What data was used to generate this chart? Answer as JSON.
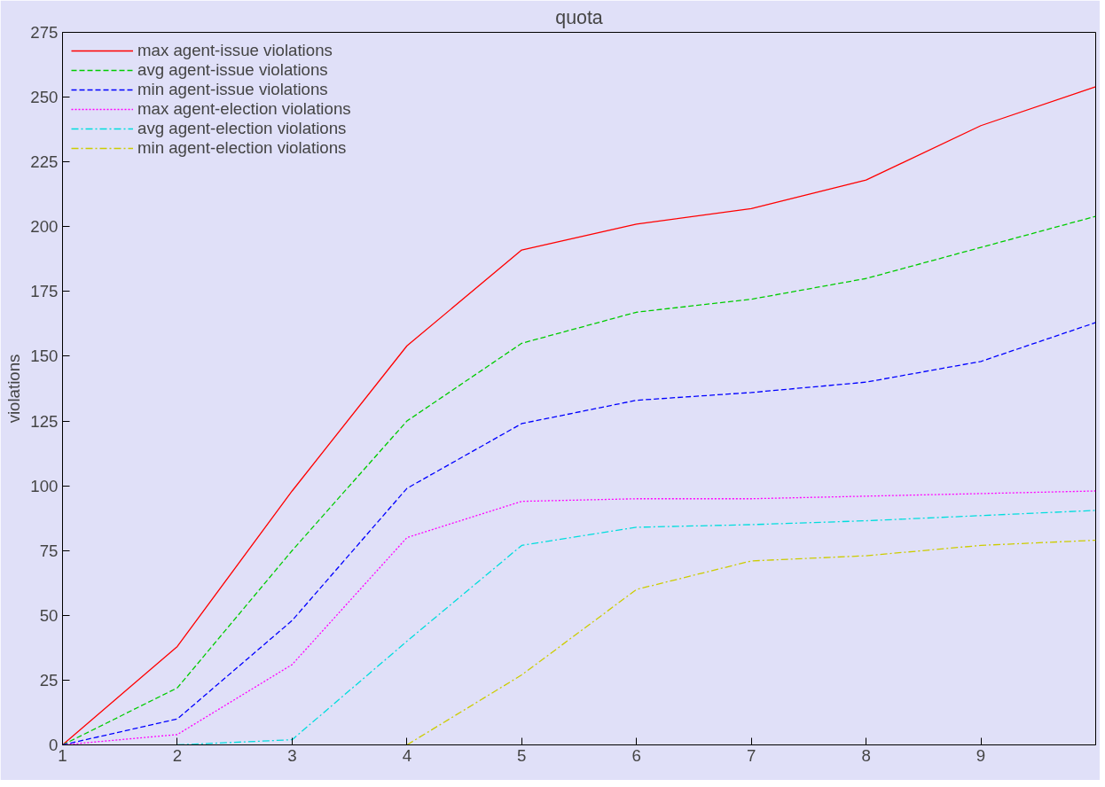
{
  "chart_data": {
    "type": "line",
    "title": "quota",
    "ylabel": "violations",
    "x": [
      1,
      2,
      3,
      4,
      5,
      6,
      7,
      8,
      9,
      10
    ],
    "xlim": [
      1,
      10
    ],
    "xticks": [
      1,
      2,
      3,
      4,
      5,
      6,
      7,
      8,
      9
    ],
    "ylim": [
      0,
      275
    ],
    "yticks": [
      0,
      25,
      50,
      75,
      100,
      125,
      150,
      175,
      200,
      225,
      250,
      275
    ],
    "grid": false,
    "legend": "top left",
    "marker": "none",
    "series": [
      {
        "name": "max agent-issue violations",
        "color": "#ff0000",
        "line_style": "solid",
        "values": [
          0,
          38,
          98,
          154,
          191,
          201,
          207,
          218,
          239,
          254
        ]
      },
      {
        "name": "avg agent-issue violations",
        "color": "#00cc00",
        "line_style": "dashed",
        "values": [
          0,
          22,
          75,
          125,
          155,
          167,
          172,
          180,
          192,
          204
        ]
      },
      {
        "name": "min agent-issue violations",
        "color": "#0000ff",
        "line_style": "dashed",
        "values": [
          0,
          10,
          48,
          99,
          124,
          133,
          136,
          140,
          148,
          163
        ]
      },
      {
        "name": "max agent-election violations",
        "color": "#ff00ff",
        "line_style": "dotted",
        "values": [
          0,
          4,
          31,
          80,
          94,
          95,
          95,
          96,
          97,
          98
        ]
      },
      {
        "name": "avg agent-election violations",
        "color": "#00dddd",
        "line_style": "dashdot",
        "values": [
          null,
          0,
          2,
          40,
          77,
          84,
          85,
          86.5,
          88.5,
          90.5
        ]
      },
      {
        "name": "min agent-election violations",
        "color": "#cccc00",
        "line_style": "dashdot",
        "values": [
          null,
          null,
          null,
          0,
          27,
          60,
          71,
          73,
          77,
          79
        ]
      }
    ]
  }
}
